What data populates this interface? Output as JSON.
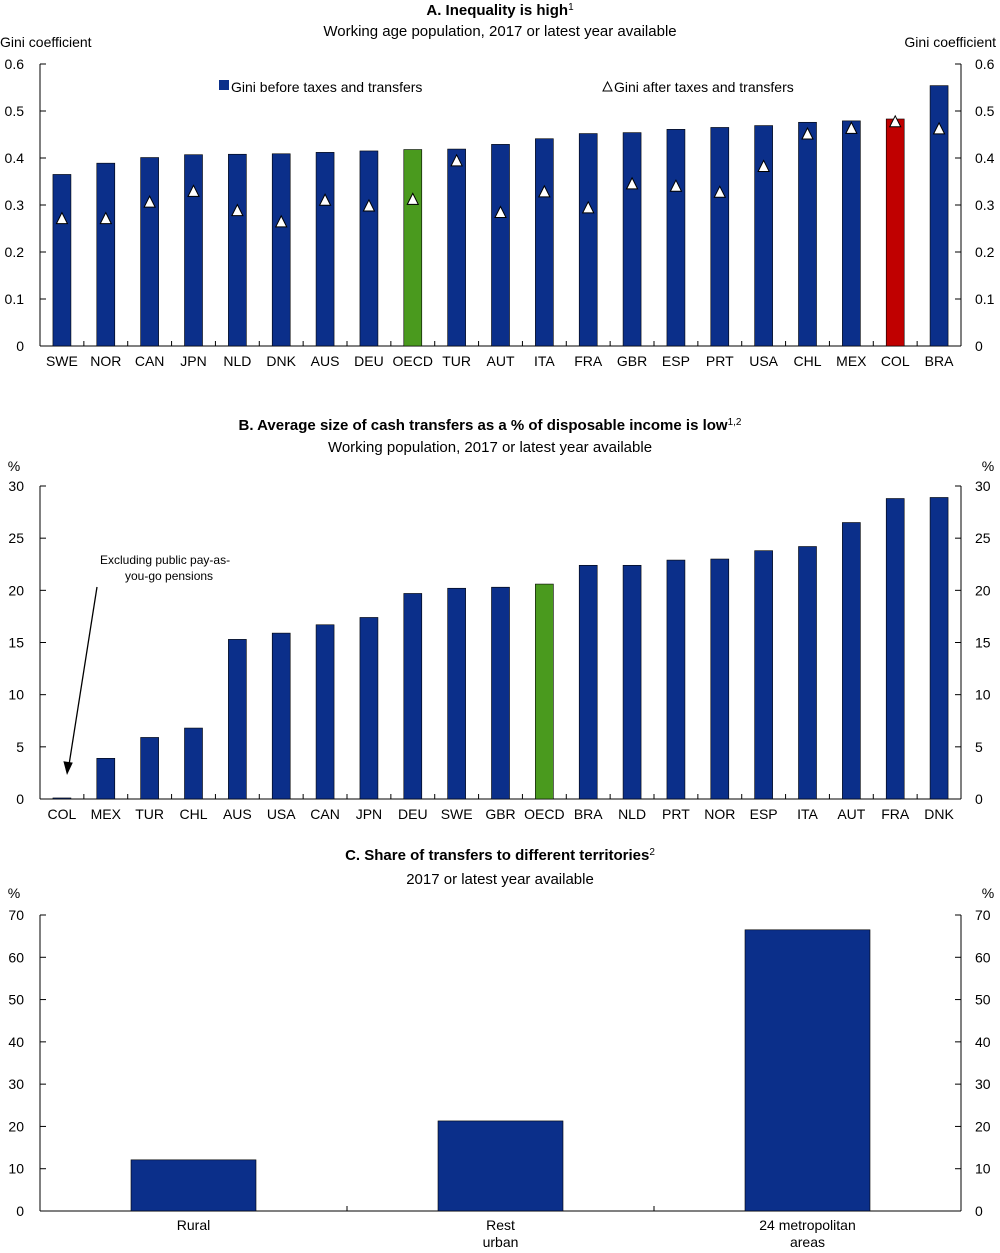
{
  "colors": {
    "bar": "#0b2f8a",
    "oecd": "#4a9a1e",
    "highlight": "#c00000",
    "axis": "#000000",
    "marker_fill": "#ffffff"
  },
  "chart_data": [
    {
      "id": "panelA",
      "type": "bar",
      "title": "A. Inequality is high",
      "title_sup": "1",
      "subtitle": "Working age population, 2017 or latest year available",
      "ylabel_left": "Gini coefficient",
      "ylabel_right": "Gini coefficient",
      "ylim": [
        0,
        0.6
      ],
      "yticks": [
        0,
        0.1,
        0.2,
        0.3,
        0.4,
        0.5,
        0.6
      ],
      "ytick_labels": [
        "0",
        "0.1",
        "0.2",
        "0.3",
        "0.4",
        "0.5",
        "0.6"
      ],
      "grid": false,
      "categories": [
        "SWE",
        "NOR",
        "CAN",
        "JPN",
        "NLD",
        "DNK",
        "AUS",
        "DEU",
        "OECD",
        "TUR",
        "AUT",
        "ITA",
        "FRA",
        "GBR",
        "ESP",
        "PRT",
        "USA",
        "CHL",
        "MEX",
        "COL",
        "BRA"
      ],
      "series": [
        {
          "name": "Gini before taxes and transfers",
          "kind": "bar",
          "values": [
            0.365,
            0.389,
            0.401,
            0.407,
            0.408,
            0.409,
            0.412,
            0.415,
            0.418,
            0.419,
            0.429,
            0.441,
            0.452,
            0.454,
            0.461,
            0.465,
            0.469,
            0.476,
            0.479,
            0.483,
            0.554
          ]
        },
        {
          "name": "Gini after taxes and transfers",
          "kind": "marker",
          "values": [
            0.271,
            0.271,
            0.306,
            0.329,
            0.288,
            0.264,
            0.31,
            0.298,
            0.312,
            0.394,
            0.284,
            0.328,
            0.294,
            0.345,
            0.34,
            0.327,
            0.382,
            0.451,
            0.463,
            0.477,
            0.462
          ]
        }
      ],
      "highlights": {
        "OECD": "oecd",
        "COL": "highlight"
      },
      "legend": [
        {
          "label": "Gini before taxes and transfers",
          "symbol": "square"
        },
        {
          "label": "Gini after taxes and transfers",
          "symbol": "triangle"
        }
      ]
    },
    {
      "id": "panelB",
      "type": "bar",
      "title": "B. Average size of cash transfers as a % of disposable income is low",
      "title_sup": "1,2",
      "subtitle": "Working population, 2017 or latest year available",
      "ylabel_left": "%",
      "ylabel_right": "%",
      "ylim": [
        0,
        30
      ],
      "yticks": [
        0,
        5,
        10,
        15,
        20,
        25,
        30
      ],
      "ytick_labels": [
        "0",
        "5",
        "10",
        "15",
        "20",
        "25",
        "30"
      ],
      "grid": false,
      "categories": [
        "COL",
        "MEX",
        "TUR",
        "CHL",
        "AUS",
        "USA",
        "CAN",
        "JPN",
        "DEU",
        "SWE",
        "GBR",
        "OECD",
        "BRA",
        "NLD",
        "PRT",
        "NOR",
        "ESP",
        "ITA",
        "AUT",
        "FRA",
        "DNK"
      ],
      "series": [
        {
          "name": "",
          "kind": "bar",
          "values": [
            0.1,
            3.9,
            5.9,
            6.8,
            15.3,
            15.9,
            16.7,
            17.4,
            19.7,
            20.2,
            20.3,
            20.6,
            22.4,
            22.4,
            22.9,
            23.0,
            23.8,
            24.2,
            26.5,
            28.8,
            28.9
          ]
        }
      ],
      "highlights": {
        "OECD": "oecd"
      },
      "annotation": {
        "lines": [
          "Excluding public pay-as-",
          "you-go pensions"
        ],
        "target": "COL"
      }
    },
    {
      "id": "panelC",
      "type": "bar",
      "title": "C. Share of transfers to different territories",
      "title_sup": "2",
      "subtitle": "2017 or latest year available",
      "ylabel_left": "%",
      "ylabel_right": "%",
      "ylim": [
        0,
        70
      ],
      "yticks": [
        0,
        10,
        20,
        30,
        40,
        50,
        60,
        70
      ],
      "ytick_labels": [
        "0",
        "10",
        "20",
        "30",
        "40",
        "50",
        "60",
        "70"
      ],
      "grid": false,
      "categories": [
        [
          "Rural"
        ],
        [
          "Rest",
          "urban"
        ],
        [
          "24 metropolitan",
          "areas"
        ]
      ],
      "series": [
        {
          "name": "",
          "kind": "bar",
          "values": [
            12.1,
            21.3,
            66.5
          ]
        }
      ]
    }
  ]
}
